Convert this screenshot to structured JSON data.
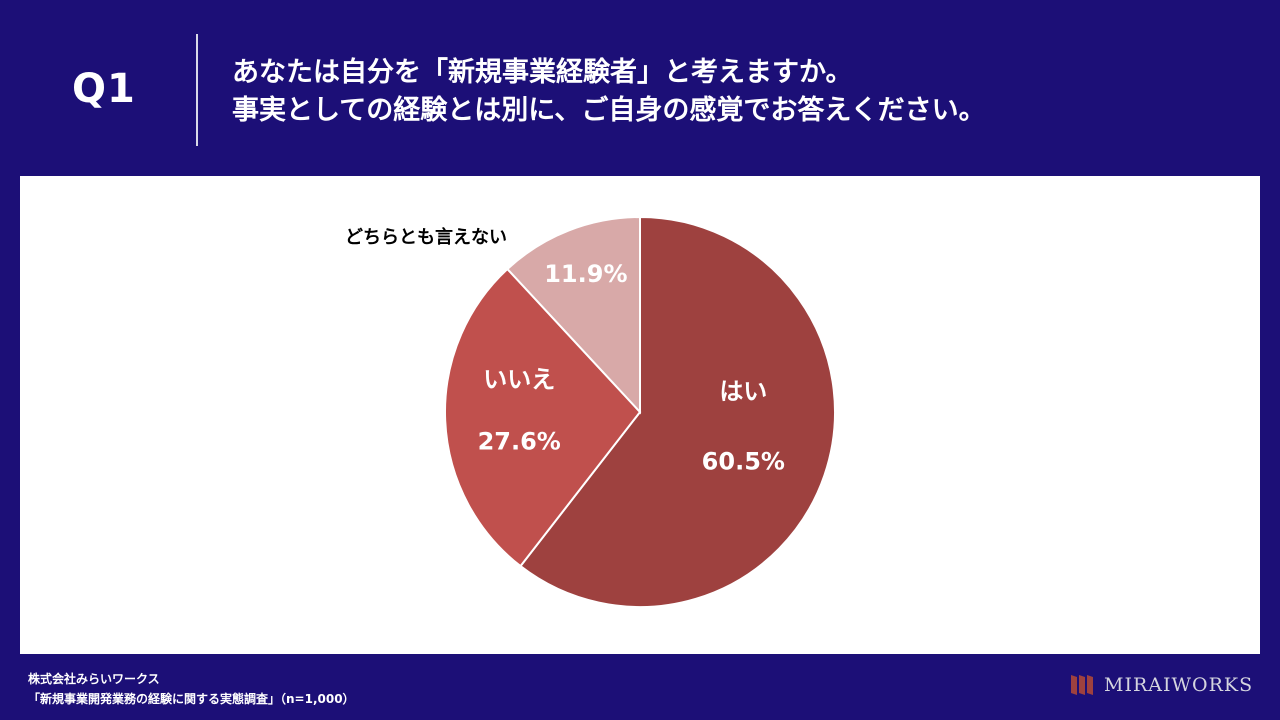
{
  "header": {
    "q_label": "Q1",
    "question_line1": "あなたは自分を「新規事業経験者」と考えますか。",
    "question_line2": "事実としての経験とは別に、ご自身の感覚でお答えください。"
  },
  "chart_data": {
    "type": "pie",
    "start_angle_deg": 0,
    "direction": "clockwise",
    "slices": [
      {
        "name": "はい",
        "value": 60.5,
        "label": "60.5%",
        "color": "#9e413f"
      },
      {
        "name": "いいえ",
        "value": 27.6,
        "label": "27.6%",
        "color": "#c0504d"
      },
      {
        "name": "どちらとも言えない",
        "value": 11.9,
        "label": "11.9%",
        "color": "#d8a9a8"
      }
    ]
  },
  "footer": {
    "company": "株式会社みらいワークス",
    "source": "「新規事業開発業務の経験に関する実態調査」（n=1,000）"
  },
  "logo": {
    "text": "MIRAIWORKS",
    "accent": "#9e413f"
  },
  "colors": {
    "background": "#1c0f77",
    "panel": "#ffffff"
  }
}
